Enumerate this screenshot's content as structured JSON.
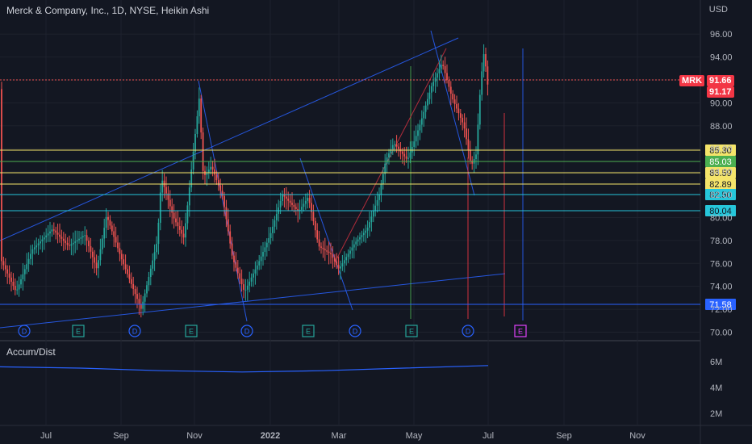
{
  "header": {
    "title": "Merck & Company, Inc., 1D, NYSE, Heikin Ashi",
    "currency": "USD"
  },
  "indicator": {
    "title": "Accum/Dist"
  },
  "ticker_badge": {
    "label": "MRK",
    "price": "91.66",
    "prev": "91.17"
  },
  "colors": {
    "up": "#26a69a",
    "down": "#ef5350",
    "bg": "#131722",
    "grid": "#1e222d"
  },
  "chart_data": {
    "type": "candlestick",
    "subtitle": "Heikin Ashi",
    "price_axis": {
      "ticks": [
        "96.00",
        "94.00",
        "92.00",
        "90.00",
        "88.00",
        "86.00",
        "84.00",
        "82.00",
        "80.00",
        "78.00",
        "76.00",
        "74.00",
        "72.00",
        "70.00"
      ],
      "range": [
        69.4,
        97.0
      ]
    },
    "indicator_axis": {
      "ticks": [
        "6M",
        "4M",
        "2M"
      ]
    },
    "time_axis": {
      "labels": [
        "Jul",
        "Sep",
        "Nov",
        "2022",
        "Mar",
        "May",
        "Jul",
        "Sep",
        "Nov"
      ]
    },
    "levels": [
      {
        "label": "85.30",
        "value": 85.3,
        "color": "#f4e46a",
        "text_color": "#131722"
      },
      {
        "label": "85.03",
        "value": 85.03,
        "color": "#4caf50",
        "text_color": "#ffffff"
      },
      {
        "label": "83.59",
        "value": 83.59,
        "color": "#f4e46a",
        "text_color": "#131722"
      },
      {
        "label": "82.89",
        "value": 82.89,
        "color": "#f4e46a",
        "text_color": "#131722"
      },
      {
        "label": "82.50",
        "value": 82.5,
        "color": "#26c6da",
        "text_color": "#131722"
      },
      {
        "label": "80.04",
        "value": 80.04,
        "color": "#26c6da",
        "text_color": "#131722"
      },
      {
        "label": "71.58",
        "value": 71.58,
        "color": "#2962ff",
        "text_color": "#ffffff"
      }
    ],
    "event_markers": [
      {
        "type": "D"
      },
      {
        "type": "E"
      },
      {
        "type": "D"
      },
      {
        "type": "E"
      },
      {
        "type": "D"
      },
      {
        "type": "E"
      },
      {
        "type": "D"
      },
      {
        "type": "E"
      },
      {
        "type": "D"
      },
      {
        "type": "E",
        "upcoming": true
      }
    ],
    "price_series": [
      [
        0,
        76.5
      ],
      [
        20,
        73.5
      ],
      [
        40,
        77.2
      ],
      [
        65,
        79.0
      ],
      [
        85,
        77.5
      ],
      [
        105,
        78.5
      ],
      [
        120,
        75.5
      ],
      [
        132,
        80.2
      ],
      [
        150,
        76.5
      ],
      [
        175,
        72.0
      ],
      [
        195,
        78.0
      ],
      [
        200,
        83.5
      ],
      [
        215,
        80.0
      ],
      [
        228,
        78.2
      ],
      [
        240,
        86.0
      ],
      [
        247,
        90.5
      ],
      [
        252,
        83.5
      ],
      [
        262,
        84.5
      ],
      [
        276,
        81.8
      ],
      [
        288,
        76.5
      ],
      [
        303,
        73.5
      ],
      [
        320,
        76.0
      ],
      [
        335,
        78.5
      ],
      [
        350,
        82.0
      ],
      [
        370,
        80.5
      ],
      [
        382,
        81.8
      ],
      [
        395,
        77.5
      ],
      [
        410,
        76.8
      ],
      [
        420,
        75.5
      ],
      [
        440,
        77.8
      ],
      [
        455,
        79.0
      ],
      [
        470,
        82.0
      ],
      [
        478,
        85.0
      ],
      [
        488,
        86.5
      ],
      [
        505,
        85.0
      ],
      [
        520,
        88.0
      ],
      [
        535,
        91.5
      ],
      [
        548,
        93.5
      ],
      [
        560,
        90.5
      ],
      [
        575,
        88.0
      ],
      [
        584,
        84.5
      ],
      [
        590,
        85.5
      ],
      [
        596,
        92.0
      ],
      [
        600,
        94.5
      ],
      [
        605,
        91.2
      ]
    ],
    "accum_dist": [
      [
        0,
        5.6
      ],
      [
        100,
        5.5
      ],
      [
        200,
        5.3
      ],
      [
        300,
        5.2
      ],
      [
        400,
        5.3
      ],
      [
        500,
        5.5
      ],
      [
        605,
        5.7
      ]
    ]
  }
}
